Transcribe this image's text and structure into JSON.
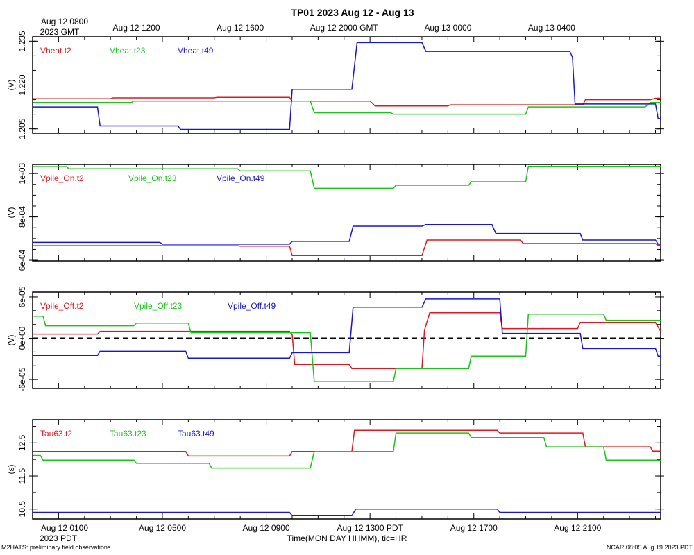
{
  "chart_data": {
    "title": "TP01 2023 Aug 12 - Aug 13",
    "top_axis": {
      "first_label_lines": [
        "Aug 12 0800",
        "2023 GMT"
      ],
      "labels": [
        "Aug 12 1200",
        "Aug 12 1600",
        "Aug 12 2000 GMT",
        "Aug 13 0000",
        "Aug 13 0400"
      ],
      "label_hours": [
        3,
        7,
        11,
        15,
        19
      ]
    },
    "bottom_axis": {
      "first_label_lines": [
        "Aug 12 0100",
        "2023 PDT"
      ],
      "labels": [
        "Aug 12 0500",
        "Aug 12 0900",
        "Aug 12 1300 PDT",
        "Aug 12 1700",
        "Aug 12 2100"
      ],
      "label_hours": [
        4,
        8,
        12,
        16,
        20
      ],
      "xlabel": "Time(MON DAY HHMM), tic=HR"
    },
    "xlim_hours": [
      -1,
      23.2
    ],
    "footer_left": "M2HATS: preliminary field observations",
    "footer_right": "NCAR 08:05 Aug 19 2023 PDT",
    "panels": [
      {
        "type": "line",
        "ylabel": "(V)",
        "ylim": [
          1.2035,
          1.2365
        ],
        "yticks": [
          1.205,
          1.22,
          1.235
        ],
        "ytick_labels": [
          "1.205",
          "1.220",
          "1.235"
        ],
        "minor_step": 0.005,
        "zero_line": false,
        "series": [
          {
            "name": "Vheat.t2",
            "color": "#e8141c",
            "points": [
              [
                -1,
                1.2153
              ],
              [
                2,
                1.2153
              ],
              [
                2.1,
                1.2156
              ],
              [
                6,
                1.2156
              ],
              [
                6.1,
                1.2158
              ],
              [
                8.9,
                1.2158
              ],
              [
                9,
                1.2145
              ],
              [
                12,
                1.2145
              ],
              [
                12.2,
                1.2128
              ],
              [
                15,
                1.2128
              ],
              [
                15.1,
                1.2132
              ],
              [
                20.2,
                1.2132
              ],
              [
                20.3,
                1.215
              ],
              [
                22.8,
                1.215
              ],
              [
                23,
                1.2155
              ],
              [
                23.2,
                1.2155
              ]
            ]
          },
          {
            "name": "Vheat.t23",
            "color": "#14c814",
            "points": [
              [
                -1,
                1.214
              ],
              [
                2.8,
                1.214
              ],
              [
                2.9,
                1.2145
              ],
              [
                9.7,
                1.2145
              ],
              [
                9.85,
                1.2105
              ],
              [
                12.8,
                1.2105
              ],
              [
                12.9,
                1.21
              ],
              [
                18,
                1.21
              ],
              [
                18.1,
                1.2125
              ],
              [
                22.6,
                1.2125
              ],
              [
                22.8,
                1.214
              ],
              [
                23.2,
                1.214
              ]
            ]
          },
          {
            "name": "Vheat.t49",
            "color": "#1414e0",
            "points": [
              [
                -1,
                1.2125
              ],
              [
                1.5,
                1.2125
              ],
              [
                1.6,
                1.206
              ],
              [
                4.6,
                1.206
              ],
              [
                4.7,
                1.2048
              ],
              [
                8.9,
                1.2048
              ],
              [
                9,
                1.2185
              ],
              [
                11.3,
                1.2185
              ],
              [
                11.5,
                1.2345
              ],
              [
                14,
                1.2345
              ],
              [
                14.15,
                1.2315
              ],
              [
                19.7,
                1.2315
              ],
              [
                19.8,
                1.2295
              ],
              [
                19.9,
                1.2135
              ],
              [
                23,
                1.2135
              ],
              [
                23.1,
                1.2085
              ],
              [
                23.2,
                1.2085
              ]
            ]
          }
        ]
      },
      {
        "type": "line",
        "ylabel": "(V)",
        "ylim": [
          0.000597,
          0.001042
        ],
        "yticks": [
          0.0006,
          0.0008,
          0.001
        ],
        "ytick_labels": [
          "6e-04",
          "8e-04",
          "1e-03"
        ],
        "minor_step": 5e-05,
        "zero_line": false,
        "series": [
          {
            "name": "Vpile_On.t2",
            "color": "#e8141c",
            "points": [
              [
                -1,
                0.000667
              ],
              [
                6.9,
                0.000667
              ],
              [
                7,
                0.000665
              ],
              [
                8.9,
                0.000665
              ],
              [
                9,
                0.000622
              ],
              [
                14,
                0.000622
              ],
              [
                14.2,
                0.000693
              ],
              [
                17.8,
                0.000693
              ],
              [
                17.9,
                0.000677
              ],
              [
                23,
                0.000677
              ],
              [
                23.1,
                0.000669
              ],
              [
                23.2,
                0.000669
              ]
            ]
          },
          {
            "name": "Vpile_On.t23",
            "color": "#14c814",
            "points": [
              [
                -1,
                0.001032
              ],
              [
                0.3,
                0.001032
              ],
              [
                0.4,
                0.001022
              ],
              [
                6.9,
                0.001022
              ],
              [
                7,
                0.001012
              ],
              [
                9.7,
                0.001012
              ],
              [
                9.85,
                0.000932
              ],
              [
                12.9,
                0.000932
              ],
              [
                13,
                0.000946
              ],
              [
                15.8,
                0.000946
              ],
              [
                15.9,
                0.000962
              ],
              [
                18,
                0.000962
              ],
              [
                18.1,
                0.001033
              ],
              [
                23.2,
                0.001033
              ]
            ]
          },
          {
            "name": "Vpile_On.t49",
            "color": "#1414e0",
            "points": [
              [
                -1,
                0.000682
              ],
              [
                3.9,
                0.000682
              ],
              [
                4,
                0.000674
              ],
              [
                8.9,
                0.000674
              ],
              [
                9,
                0.000687
              ],
              [
                11.2,
                0.000687
              ],
              [
                11.35,
                0.000757
              ],
              [
                14,
                0.000757
              ],
              [
                14.15,
                0.000764
              ],
              [
                16.7,
                0.000764
              ],
              [
                16.85,
                0.000723
              ],
              [
                20.1,
                0.000723
              ],
              [
                20.2,
                0.000693
              ],
              [
                23,
                0.000693
              ],
              [
                23.1,
                0.000674
              ],
              [
                23.2,
                0.000674
              ]
            ]
          }
        ]
      },
      {
        "type": "line",
        "ylabel": "(V)",
        "ylim": [
          -7.3e-05,
          6.7e-05
        ],
        "yticks": [
          -6e-05,
          0,
          6e-05
        ],
        "ytick_labels": [
          "-6e-05",
          "0e+00",
          "6e-05"
        ],
        "minor_step": 2e-05,
        "zero_line": true,
        "series": [
          {
            "name": "Vpile_Off.t2",
            "color": "#e8141c",
            "points": [
              [
                -1,
                6e-06
              ],
              [
                1.5,
                6e-06
              ],
              [
                1.6,
                1e-05
              ],
              [
                8.9,
                1e-05
              ],
              [
                9,
                5e-06
              ],
              [
                9.1,
                -3.8e-05
              ],
              [
                11.2,
                -3.8e-05
              ],
              [
                11.3,
                -4.4e-05
              ],
              [
                14,
                -4.4e-05
              ],
              [
                14.1,
                1.2e-05
              ],
              [
                14.3,
                3.7e-05
              ],
              [
                17,
                3.7e-05
              ],
              [
                17.1,
                1.4e-05
              ],
              [
                20,
                1.4e-05
              ],
              [
                20.1,
                2.3e-05
              ],
              [
                23,
                2.3e-05
              ],
              [
                23.2,
                1e-05
              ]
            ]
          },
          {
            "name": "Vpile_Off.t23",
            "color": "#14c814",
            "points": [
              [
                -1,
                3.2e-05
              ],
              [
                -0.6,
                3.2e-05
              ],
              [
                -0.5,
                1.8e-05
              ],
              [
                2.9,
                1.8e-05
              ],
              [
                3,
                2.2e-05
              ],
              [
                5,
                2.2e-05
              ],
              [
                5.1,
                8e-06
              ],
              [
                9.7,
                8e-06
              ],
              [
                9.85,
                -6.3e-05
              ],
              [
                12.9,
                -6.3e-05
              ],
              [
                13,
                -4.4e-05
              ],
              [
                15.8,
                -4.4e-05
              ],
              [
                15.9,
                -2.6e-05
              ],
              [
                18,
                -2.6e-05
              ],
              [
                18.1,
                3.5e-05
              ],
              [
                21,
                3.5e-05
              ],
              [
                21.1,
                2.6e-05
              ],
              [
                23.2,
                2.6e-05
              ]
            ]
          },
          {
            "name": "Vpile_Off.t49",
            "color": "#1414e0",
            "points": [
              [
                -1,
                -2.5e-05
              ],
              [
                1.5,
                -2.5e-05
              ],
              [
                1.6,
                -1.9e-05
              ],
              [
                4.9,
                -1.9e-05
              ],
              [
                5,
                -2.9e-05
              ],
              [
                8.9,
                -2.9e-05
              ],
              [
                9,
                -2.1e-05
              ],
              [
                11.2,
                -2.1e-05
              ],
              [
                11.35,
                4.5e-05
              ],
              [
                14,
                4.5e-05
              ],
              [
                14.15,
                5.7e-05
              ],
              [
                17,
                5.7e-05
              ],
              [
                17.1,
                7e-06
              ],
              [
                20.1,
                7e-06
              ],
              [
                20.2,
                -1.5e-05
              ],
              [
                23,
                -1.5e-05
              ],
              [
                23.1,
                -2.6e-05
              ],
              [
                23.2,
                -2.6e-05
              ]
            ]
          }
        ]
      },
      {
        "type": "line",
        "ylabel": "(s)",
        "ylim": [
          10.2,
          13.2
        ],
        "yticks": [
          10.5,
          11.5,
          12.5
        ],
        "ytick_labels": [
          "10.5",
          "11.5",
          "12.5"
        ],
        "minor_step": 0.5,
        "zero_line": false,
        "series": [
          {
            "name": "Tau63.t2",
            "color": "#e8141c",
            "points": [
              [
                -1,
                12.24
              ],
              [
                4.9,
                12.24
              ],
              [
                5,
                12.1
              ],
              [
                8.9,
                12.1
              ],
              [
                9,
                12.24
              ],
              [
                11.3,
                12.24
              ],
              [
                11.4,
                12.88
              ],
              [
                16.9,
                12.88
              ],
              [
                17,
                12.8
              ],
              [
                20.2,
                12.8
              ],
              [
                20.3,
                12.38
              ],
              [
                22.8,
                12.38
              ],
              [
                22.9,
                12.25
              ],
              [
                23.2,
                12.25
              ]
            ]
          },
          {
            "name": "Tau63.t23",
            "color": "#14c814",
            "points": [
              [
                -1,
                12.12
              ],
              [
                -0.7,
                12.12
              ],
              [
                -0.6,
                11.98
              ],
              [
                2.9,
                11.98
              ],
              [
                3,
                11.88
              ],
              [
                5.8,
                11.88
              ],
              [
                5.9,
                11.74
              ],
              [
                9.7,
                11.74
              ],
              [
                9.85,
                12.24
              ],
              [
                12.9,
                12.24
              ],
              [
                13,
                12.8
              ],
              [
                15.8,
                12.8
              ],
              [
                15.9,
                12.66
              ],
              [
                18.7,
                12.66
              ],
              [
                18.8,
                12.38
              ],
              [
                21,
                12.38
              ],
              [
                21.1,
                11.98
              ],
              [
                23.2,
                11.98
              ]
            ]
          },
          {
            "name": "Tau63.t49",
            "color": "#1414e0",
            "points": [
              [
                -1,
                10.4
              ],
              [
                8.9,
                10.4
              ],
              [
                9,
                10.3
              ],
              [
                11.3,
                10.3
              ],
              [
                11.45,
                10.5
              ],
              [
                16.9,
                10.5
              ],
              [
                17,
                10.4
              ],
              [
                23.2,
                10.4
              ]
            ]
          }
        ]
      }
    ]
  }
}
